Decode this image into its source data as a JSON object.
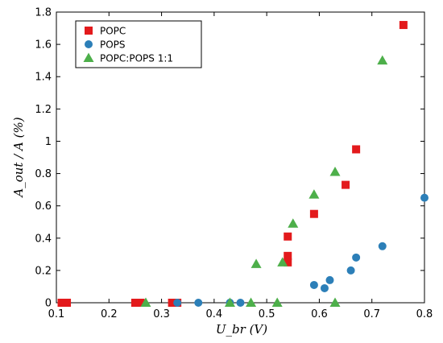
{
  "chart_data": {
    "type": "scatter",
    "title": "",
    "xlabel": "U_br (V)",
    "ylabel": "A_out / A (%)",
    "xlim": [
      0.1,
      0.8
    ],
    "ylim": [
      0,
      1.8
    ],
    "xticks": [
      0.1,
      0.2,
      0.3,
      0.4,
      0.5,
      0.6,
      0.7,
      0.8
    ],
    "xtick_labels": [
      "0.1",
      "0.2",
      "0.3",
      "0.4",
      "0.5",
      "0.6",
      "0.7",
      "0.8"
    ],
    "yticks": [
      0,
      0.2,
      0.4,
      0.6,
      0.8,
      1,
      1.2,
      1.4,
      1.6,
      1.8
    ],
    "ytick_labels": [
      "0",
      "0.2",
      "0.4",
      "0.6",
      "0.8",
      "1",
      "1.2",
      "1.4",
      "1.6",
      "1.8"
    ],
    "grid": false,
    "legend": "top-left",
    "series": [
      {
        "name": "POPC",
        "marker": "square",
        "color": "#e31a1c",
        "points": [
          [
            0.11,
            0
          ],
          [
            0.12,
            0
          ],
          [
            0.25,
            0
          ],
          [
            0.26,
            0
          ],
          [
            0.32,
            0
          ],
          [
            0.33,
            0
          ],
          [
            0.54,
            0.25
          ],
          [
            0.54,
            0.29
          ],
          [
            0.54,
            0.41
          ],
          [
            0.59,
            0.55
          ],
          [
            0.65,
            0.73
          ],
          [
            0.67,
            0.95
          ],
          [
            0.76,
            1.72
          ]
        ]
      },
      {
        "name": "POPS",
        "marker": "circle",
        "color": "#2c7fb8",
        "points": [
          [
            0.33,
            0
          ],
          [
            0.37,
            0
          ],
          [
            0.43,
            0
          ],
          [
            0.45,
            0
          ],
          [
            0.59,
            0.11
          ],
          [
            0.61,
            0.09
          ],
          [
            0.62,
            0.14
          ],
          [
            0.66,
            0.2
          ],
          [
            0.67,
            0.28
          ],
          [
            0.72,
            0.35
          ],
          [
            0.8,
            0.65
          ]
        ]
      },
      {
        "name": "POPC:POPS 1:1",
        "marker": "triangle",
        "color": "#4daf4a",
        "points": [
          [
            0.27,
            0
          ],
          [
            0.43,
            0
          ],
          [
            0.47,
            0
          ],
          [
            0.48,
            0.24
          ],
          [
            0.52,
            0
          ],
          [
            0.53,
            0.25
          ],
          [
            0.55,
            0.49
          ],
          [
            0.59,
            0.67
          ],
          [
            0.63,
            0.81
          ],
          [
            0.63,
            0
          ],
          [
            0.72,
            1.5
          ]
        ]
      }
    ]
  }
}
